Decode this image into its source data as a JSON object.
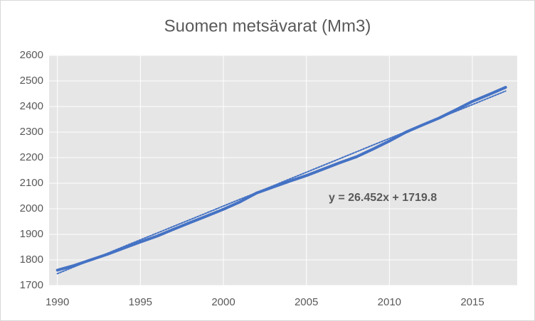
{
  "chart_data": {
    "type": "line",
    "title": "Suomen metsävarat (Mm3)",
    "x": [
      1990,
      1991,
      1992,
      1993,
      1994,
      1995,
      1996,
      1997,
      1998,
      1999,
      2000,
      2001,
      2002,
      2003,
      2004,
      2005,
      2006,
      2007,
      2008,
      2009,
      2010,
      2011,
      2012,
      2013,
      2014,
      2015,
      2016,
      2017
    ],
    "series": [
      {
        "color": "#4472c4",
        "values": [
          1760,
          1778,
          1800,
          1822,
          1846,
          1870,
          1893,
          1920,
          1946,
          1972,
          1998,
          2027,
          2062,
          2085,
          2108,
          2130,
          2155,
          2180,
          2203,
          2233,
          2265,
          2300,
          2328,
          2355,
          2387,
          2420,
          2447,
          2475
        ]
      },
      {
        "color": "#4472c4",
        "dashed": true,
        "values": [
          1746.3,
          1772.7,
          1799.2,
          1825.6,
          1852.1,
          1878.5,
          1905.0,
          1931.4,
          1957.9,
          1984.3,
          2010.8,
          2037.2,
          2063.7,
          2090.1,
          2116.6,
          2143.0,
          2169.5,
          2195.9,
          2222.4,
          2248.8,
          2275.3,
          2301.7,
          2328.2,
          2354.6,
          2381.1,
          2407.6,
          2434.0,
          2460.5
        ]
      }
    ],
    "annotation": "y = 26.452x + 1719.8",
    "xlim": [
      1989.5,
      2017.7
    ],
    "xticks": [
      1990,
      1995,
      2000,
      2005,
      2010,
      2015
    ],
    "ylim": [
      1700,
      2600
    ],
    "yticks": [
      1700,
      1800,
      1900,
      2000,
      2100,
      2200,
      2300,
      2400,
      2500,
      2600
    ],
    "grid": true
  }
}
